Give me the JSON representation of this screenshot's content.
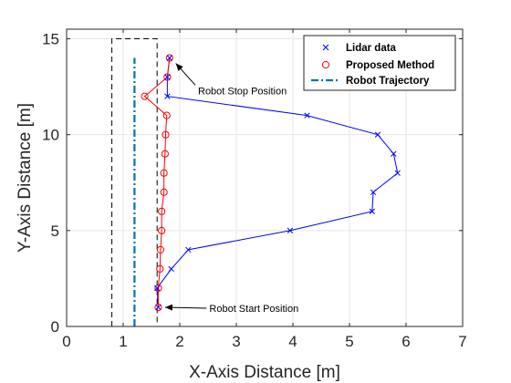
{
  "chart_data": {
    "type": "line",
    "xlabel": "X-Axis Distance [m]",
    "ylabel": "Y-Axis Distance [m]",
    "xlim": [
      0,
      7
    ],
    "ylim": [
      0,
      15.5
    ],
    "xticks": [
      "0",
      "1",
      "2",
      "3",
      "4",
      "5",
      "6",
      "7"
    ],
    "yticks": [
      "0",
      "5",
      "10",
      "15"
    ],
    "grid": true,
    "legend_position": "top-right",
    "colors": {
      "lidar": "#0000ff",
      "proposed": "#ff0000",
      "trajectory": "#0072bd",
      "corridor": "#000000"
    },
    "series": [
      {
        "name": "Lidar data",
        "style": "line-x-marker",
        "points": [
          [
            1.62,
            1.0
          ],
          [
            1.6,
            2.0
          ],
          [
            1.85,
            3.0
          ],
          [
            2.15,
            4.0
          ],
          [
            3.95,
            5.0
          ],
          [
            5.4,
            6.0
          ],
          [
            5.42,
            7.0
          ],
          [
            5.85,
            8.0
          ],
          [
            5.78,
            9.0
          ],
          [
            5.5,
            10.0
          ],
          [
            4.25,
            11.0
          ],
          [
            1.78,
            12.0
          ],
          [
            1.78,
            13.0
          ],
          [
            1.82,
            14.0
          ]
        ]
      },
      {
        "name": "Proposed Method",
        "style": "line-circle-marker",
        "points": [
          [
            1.62,
            1.0
          ],
          [
            1.62,
            2.0
          ],
          [
            1.65,
            3.0
          ],
          [
            1.66,
            4.0
          ],
          [
            1.68,
            5.0
          ],
          [
            1.68,
            6.0
          ],
          [
            1.72,
            7.0
          ],
          [
            1.72,
            8.0
          ],
          [
            1.74,
            9.0
          ],
          [
            1.75,
            10.0
          ],
          [
            1.77,
            11.0
          ],
          [
            1.38,
            12.0
          ],
          [
            1.78,
            13.0
          ],
          [
            1.82,
            14.0
          ]
        ]
      },
      {
        "name": "Robot Trajectory",
        "style": "dash-dot",
        "points": [
          [
            1.2,
            0.0
          ],
          [
            1.2,
            14.0
          ]
        ]
      }
    ],
    "corridor": [
      [
        0.8,
        0.0
      ],
      [
        0.8,
        15.0
      ],
      [
        1.6,
        15.0
      ],
      [
        1.6,
        0.0
      ]
    ],
    "annotations": [
      {
        "text": "Robot Stop Position",
        "point": [
          1.85,
          14.0
        ],
        "text_pos": [
          2.0,
          12.3
        ]
      },
      {
        "text": "Robot Start Position",
        "point": [
          1.66,
          1.0
        ],
        "text_pos": [
          2.2,
          0.95
        ]
      }
    ]
  }
}
